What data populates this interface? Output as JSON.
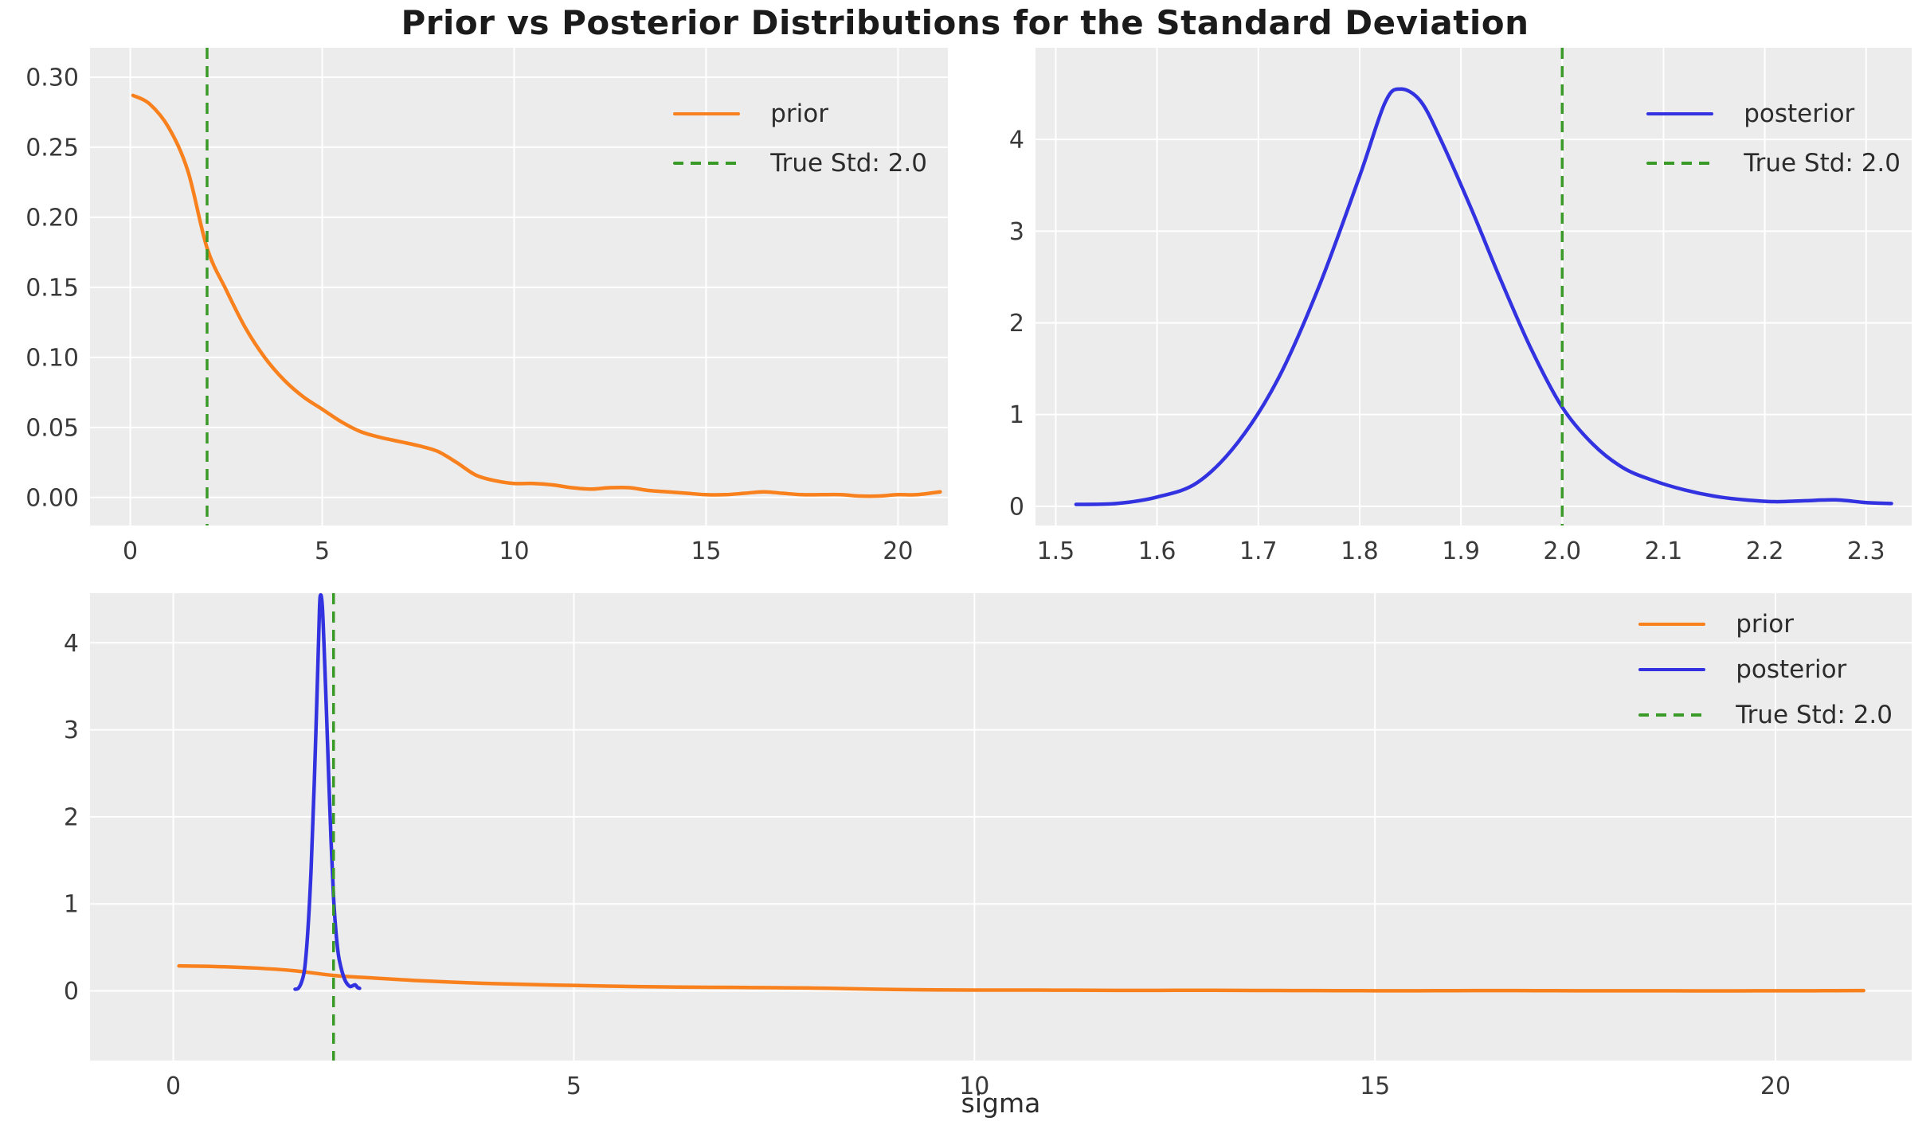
{
  "figure": {
    "title": "Prior vs Posterior Distributions for the Standard Deviation"
  },
  "colors": {
    "prior": "#f8811e",
    "posterior": "#3232e1",
    "true_std": "#3a9a28",
    "axes_bg": "#ececec",
    "grid": "#ffffff",
    "tick_text": "#3a3a3a",
    "title_text": "#1b1b1b"
  },
  "chart_data": [
    {
      "panel": "panel-prior",
      "type": "line",
      "title": "",
      "xlabel": "",
      "ylabel": "",
      "grid": true,
      "legend_position": "upper right",
      "xlim": [
        -1.05,
        21.3
      ],
      "ylim": [
        -0.02,
        0.321
      ],
      "xticks": {
        "values": [
          0,
          5,
          10,
          15,
          20
        ],
        "labels": [
          "0",
          "5",
          "10",
          "15",
          "20"
        ]
      },
      "yticks": {
        "values": [
          0.0,
          0.05,
          0.1,
          0.15,
          0.2,
          0.25,
          0.3
        ],
        "labels": [
          "0.00",
          "0.05",
          "0.10",
          "0.15",
          "0.20",
          "0.25",
          "0.30"
        ]
      },
      "vline": {
        "x": 2.0,
        "color": "true_std",
        "label": "True Std: 2.0"
      },
      "legend": [
        {
          "label": "prior",
          "color": "prior",
          "dashed": false
        },
        {
          "label": "True Std: 2.0",
          "color": "true_std",
          "dashed": true
        }
      ],
      "series": [
        {
          "name": "prior",
          "color": "prior",
          "x": [
            0.07,
            0.5,
            1.0,
            1.5,
            2.0,
            2.5,
            3.0,
            3.5,
            4.0,
            4.5,
            5.0,
            5.5,
            6.0,
            6.5,
            7.0,
            7.5,
            8.0,
            8.5,
            9.0,
            9.5,
            10.0,
            10.5,
            11.0,
            11.5,
            12.0,
            12.5,
            13.0,
            13.5,
            14.0,
            14.5,
            15.0,
            15.5,
            16.0,
            16.5,
            17.0,
            17.5,
            18.0,
            18.5,
            19.0,
            19.5,
            20.0,
            20.5,
            21.1
          ],
          "y": [
            0.287,
            0.281,
            0.264,
            0.233,
            0.178,
            0.148,
            0.121,
            0.1,
            0.084,
            0.072,
            0.063,
            0.054,
            0.047,
            0.043,
            0.04,
            0.037,
            0.033,
            0.025,
            0.016,
            0.012,
            0.01,
            0.01,
            0.009,
            0.007,
            0.006,
            0.007,
            0.007,
            0.005,
            0.004,
            0.003,
            0.002,
            0.002,
            0.003,
            0.004,
            0.003,
            0.002,
            0.002,
            0.002,
            0.001,
            0.001,
            0.002,
            0.002,
            0.004
          ]
        }
      ]
    },
    {
      "panel": "panel-posterior",
      "type": "line",
      "title": "",
      "xlabel": "",
      "ylabel": "",
      "grid": true,
      "legend_position": "upper right",
      "xlim": [
        1.48,
        2.345
      ],
      "ylim": [
        -0.21,
        5.0
      ],
      "xticks": {
        "values": [
          1.5,
          1.6,
          1.7,
          1.8,
          1.9,
          2.0,
          2.1,
          2.2,
          2.3
        ],
        "labels": [
          "1.5",
          "1.6",
          "1.7",
          "1.8",
          "1.9",
          "2.0",
          "2.1",
          "2.2",
          "2.3"
        ]
      },
      "yticks": {
        "values": [
          0,
          1,
          2,
          3,
          4
        ],
        "labels": [
          "0",
          "1",
          "2",
          "3",
          "4"
        ]
      },
      "vline": {
        "x": 2.0,
        "color": "true_std",
        "label": "True Std: 2.0"
      },
      "legend": [
        {
          "label": "posterior",
          "color": "posterior",
          "dashed": false
        },
        {
          "label": "True Std: 2.0",
          "color": "true_std",
          "dashed": true
        }
      ],
      "series": [
        {
          "name": "posterior",
          "color": "posterior",
          "x": [
            1.52,
            1.56,
            1.6,
            1.64,
            1.68,
            1.72,
            1.76,
            1.8,
            1.825,
            1.84,
            1.86,
            1.88,
            1.91,
            1.94,
            1.97,
            2.0,
            2.03,
            2.06,
            2.09,
            2.12,
            2.15,
            2.18,
            2.21,
            2.24,
            2.27,
            2.3,
            2.325
          ],
          "y": [
            0.02,
            0.03,
            0.1,
            0.26,
            0.7,
            1.4,
            2.4,
            3.6,
            4.4,
            4.55,
            4.42,
            4.0,
            3.25,
            2.45,
            1.7,
            1.08,
            0.68,
            0.42,
            0.28,
            0.18,
            0.11,
            0.07,
            0.05,
            0.06,
            0.07,
            0.04,
            0.03
          ]
        }
      ]
    },
    {
      "panel": "panel-combined",
      "type": "line",
      "title": "",
      "xlabel": "sigma",
      "ylabel": "",
      "grid": true,
      "legend_position": "upper right",
      "xlim": [
        -1.04,
        21.7
      ],
      "ylim": [
        -0.8,
        4.57
      ],
      "xticks": {
        "values": [
          0,
          5,
          10,
          15,
          20
        ],
        "labels": [
          "0",
          "5",
          "10",
          "15",
          "20"
        ]
      },
      "yticks": {
        "values": [
          0,
          1,
          2,
          3,
          4
        ],
        "labels": [
          "0",
          "1",
          "2",
          "3",
          "4"
        ]
      },
      "vline": {
        "x": 2.0,
        "color": "true_std",
        "label": "True Std: 2.0"
      },
      "legend": [
        {
          "label": "prior",
          "color": "prior",
          "dashed": false
        },
        {
          "label": "posterior",
          "color": "posterior",
          "dashed": false
        },
        {
          "label": "True Std: 2.0",
          "color": "true_std",
          "dashed": true
        }
      ],
      "series": [
        {
          "name": "prior",
          "color": "prior",
          "x": [
            0.07,
            0.5,
            1.0,
            1.5,
            2.0,
            2.5,
            3.0,
            3.5,
            4.0,
            4.5,
            5.0,
            5.5,
            6.0,
            6.5,
            7.0,
            7.5,
            8.0,
            8.5,
            9.0,
            9.5,
            10.0,
            10.5,
            11.0,
            11.5,
            12.0,
            12.5,
            13.0,
            13.5,
            14.0,
            14.5,
            15.0,
            15.5,
            16.0,
            16.5,
            17.0,
            17.5,
            18.0,
            18.5,
            19.0,
            19.5,
            20.0,
            20.5,
            21.1
          ],
          "y": [
            0.287,
            0.281,
            0.264,
            0.233,
            0.178,
            0.148,
            0.121,
            0.1,
            0.084,
            0.072,
            0.063,
            0.054,
            0.047,
            0.043,
            0.04,
            0.037,
            0.033,
            0.025,
            0.016,
            0.012,
            0.01,
            0.01,
            0.009,
            0.007,
            0.006,
            0.007,
            0.007,
            0.005,
            0.004,
            0.003,
            0.002,
            0.002,
            0.003,
            0.004,
            0.003,
            0.002,
            0.002,
            0.002,
            0.001,
            0.001,
            0.002,
            0.002,
            0.004
          ]
        },
        {
          "name": "posterior",
          "color": "posterior",
          "x": [
            1.52,
            1.56,
            1.6,
            1.64,
            1.68,
            1.72,
            1.76,
            1.8,
            1.825,
            1.84,
            1.86,
            1.88,
            1.91,
            1.94,
            1.97,
            2.0,
            2.03,
            2.06,
            2.09,
            2.12,
            2.15,
            2.18,
            2.21,
            2.24,
            2.27,
            2.3,
            2.325
          ],
          "y": [
            0.02,
            0.03,
            0.1,
            0.26,
            0.7,
            1.4,
            2.4,
            3.6,
            4.4,
            4.55,
            4.42,
            4.0,
            3.25,
            2.45,
            1.7,
            1.08,
            0.68,
            0.42,
            0.28,
            0.18,
            0.11,
            0.07,
            0.05,
            0.06,
            0.07,
            0.04,
            0.03
          ]
        }
      ]
    }
  ]
}
